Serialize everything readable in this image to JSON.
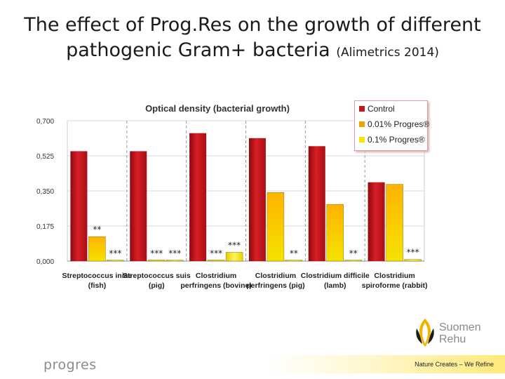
{
  "slide": {
    "title_main": "The effect of Prog.Res on the growth of different pathogenic Gram+ bacteria",
    "title_citation": "(Alimetrics 2014)",
    "logo_text": "progres",
    "brand_line1": "Suomen",
    "brand_line2": "Rehu",
    "tagline": "Nature Creates – We Refine"
  },
  "colors": {
    "control": "#c8161d",
    "progres_001": "#f0a000",
    "progres_01": "#f5e500",
    "axis_text": "#333333",
    "grid": "#d9d9d9"
  },
  "chart_data": {
    "type": "bar",
    "title": "Optical density (bacterial growth)",
    "xlabel": "",
    "ylabel": "",
    "ylim": [
      0,
      0.7
    ],
    "yticks": [
      "0,000",
      "0,175",
      "0,350",
      "0,525",
      "0,700"
    ],
    "ytick_values": [
      0,
      0.175,
      0.35,
      0.525,
      0.7
    ],
    "categories": [
      [
        "Streptococcus iniae",
        "(fish)"
      ],
      [
        "Streptococcus suis",
        "(pig)"
      ],
      [
        "Clostridium",
        "perfringens (bovine)"
      ],
      [
        "Clostridium",
        "perfringens (pig)"
      ],
      [
        "Clostridium difficile",
        "(lamb)"
      ],
      [
        "Clostridium",
        "spiroforme (rabbit)"
      ]
    ],
    "series": [
      {
        "name": "Control",
        "values": [
          0.548,
          0.548,
          0.638,
          0.613,
          0.573,
          0.393
        ]
      },
      {
        "name": "0.01% Progres®",
        "values": [
          0.122,
          0.003,
          0.003,
          0.342,
          0.283,
          0.383
        ]
      },
      {
        "name": "0.1% Progres®",
        "values": [
          0.004,
          0.003,
          0.044,
          0.003,
          0.003,
          0.008
        ]
      }
    ],
    "significance": [
      [
        "**",
        "***"
      ],
      [
        "***",
        "***"
      ],
      [
        "***",
        "***"
      ],
      [
        "",
        "**"
      ],
      [
        "",
        "**"
      ],
      [
        "",
        "***"
      ]
    ]
  }
}
